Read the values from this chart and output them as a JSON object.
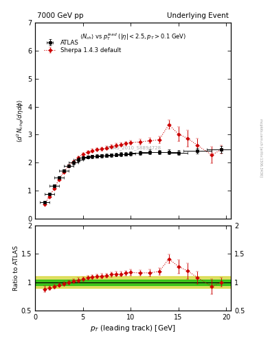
{
  "title_left": "7000 GeV pp",
  "title_right": "Underlying Event",
  "watermark": "ATLAS_2010_S8894728",
  "ylabel_main": "$\\langle d^2 N_{chg}/d\\eta d\\phi \\rangle$",
  "ylabel_ratio": "Ratio to ATLAS",
  "xlabel": "$p_T$ (leading track) [GeV]",
  "atlas_x": [
    1.0,
    1.5,
    2.0,
    2.5,
    3.0,
    3.5,
    4.0,
    4.5,
    5.0,
    5.5,
    6.0,
    6.5,
    7.0,
    7.5,
    8.0,
    8.5,
    9.0,
    9.5,
    10.0,
    11.0,
    12.0,
    13.0,
    14.0,
    15.0,
    17.0,
    19.5
  ],
  "atlas_y": [
    0.59,
    0.88,
    1.17,
    1.47,
    1.7,
    1.88,
    2.0,
    2.1,
    2.17,
    2.2,
    2.22,
    2.23,
    2.24,
    2.26,
    2.27,
    2.28,
    2.3,
    2.31,
    2.32,
    2.35,
    2.38,
    2.37,
    2.38,
    2.36,
    2.42,
    2.47
  ],
  "atlas_yerr": [
    0.03,
    0.03,
    0.04,
    0.04,
    0.05,
    0.05,
    0.06,
    0.06,
    0.06,
    0.06,
    0.06,
    0.06,
    0.06,
    0.06,
    0.06,
    0.06,
    0.07,
    0.07,
    0.07,
    0.07,
    0.08,
    0.08,
    0.08,
    0.09,
    0.1,
    0.12
  ],
  "atlas_xerr": [
    0.5,
    0.5,
    0.5,
    0.5,
    0.5,
    0.5,
    0.5,
    0.5,
    0.5,
    0.5,
    0.5,
    0.5,
    0.5,
    0.5,
    0.5,
    0.5,
    0.5,
    0.5,
    0.5,
    1.0,
    1.0,
    1.0,
    1.0,
    1.0,
    1.5,
    1.5
  ],
  "sherpa_x": [
    1.0,
    1.5,
    2.0,
    2.5,
    3.0,
    3.5,
    4.0,
    4.5,
    5.0,
    5.5,
    6.0,
    6.5,
    7.0,
    7.5,
    8.0,
    8.5,
    9.0,
    9.5,
    10.0,
    11.0,
    12.0,
    13.0,
    14.0,
    15.0,
    16.0,
    17.0,
    18.5,
    19.5
  ],
  "sherpa_y": [
    0.52,
    0.79,
    1.08,
    1.4,
    1.66,
    1.88,
    2.04,
    2.18,
    2.3,
    2.38,
    2.43,
    2.47,
    2.49,
    2.53,
    2.58,
    2.61,
    2.64,
    2.68,
    2.72,
    2.74,
    2.78,
    2.82,
    3.36,
    3.02,
    2.86,
    2.62,
    2.27,
    2.47
  ],
  "sherpa_yerr": [
    0.02,
    0.02,
    0.03,
    0.03,
    0.04,
    0.04,
    0.05,
    0.05,
    0.05,
    0.05,
    0.06,
    0.06,
    0.06,
    0.06,
    0.07,
    0.07,
    0.07,
    0.07,
    0.08,
    0.09,
    0.1,
    0.12,
    0.16,
    0.26,
    0.3,
    0.25,
    0.3,
    0.15
  ],
  "ylim_main": [
    0,
    7
  ],
  "ylim_ratio": [
    0.5,
    2.0
  ],
  "xlim": [
    0.5,
    20.5
  ],
  "green_band_half": 0.05,
  "yellow_band_half": 0.1,
  "bg_color": "#ffffff",
  "atlas_color": "#000000",
  "sherpa_color": "#cc0000",
  "green_color": "#00bb00",
  "yellow_color": "#cccc00",
  "yticks_main": [
    0,
    1,
    2,
    3,
    4,
    5,
    6,
    7
  ],
  "yticks_ratio": [
    0.5,
    1.0,
    1.5,
    2.0
  ],
  "xticks": [
    0,
    5,
    10,
    15,
    20
  ]
}
